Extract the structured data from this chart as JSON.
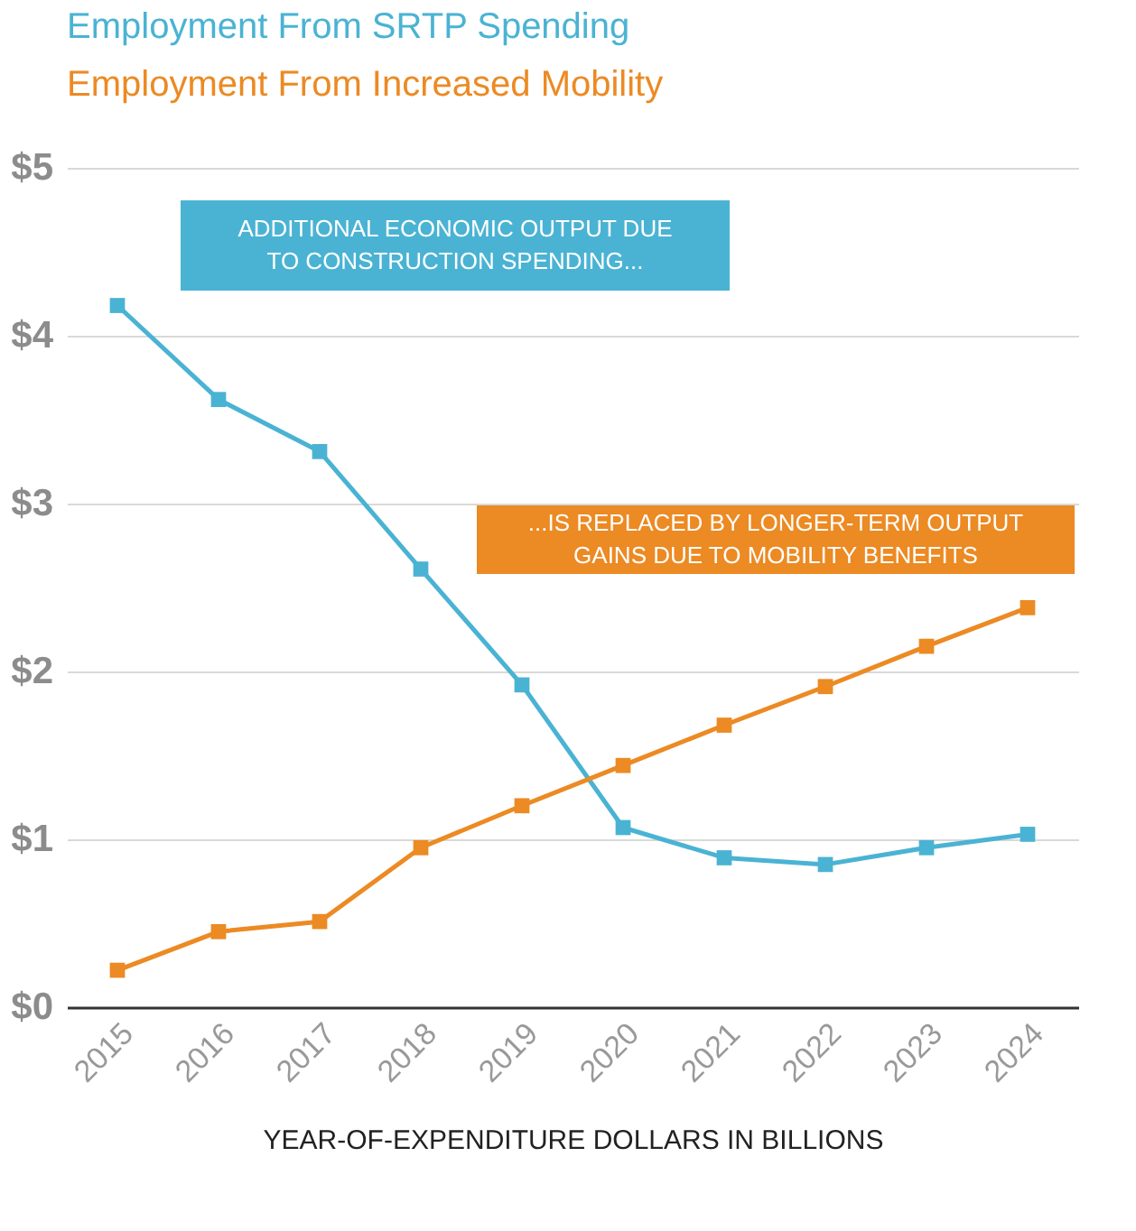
{
  "chart_data": {
    "type": "line",
    "categories": [
      "2015",
      "2016",
      "2017",
      "2018",
      "2019",
      "2020",
      "2021",
      "2022",
      "2023",
      "2024"
    ],
    "series": [
      {
        "name": "Employment From SRTP Spending",
        "color": "#4ab3d3",
        "values": [
          4.18,
          3.62,
          3.31,
          2.61,
          1.92,
          1.07,
          0.89,
          0.85,
          0.95,
          1.03
        ]
      },
      {
        "name": "Employment From Increased Mobility",
        "color": "#ec8a23",
        "values": [
          0.22,
          0.45,
          0.51,
          0.95,
          1.2,
          1.44,
          1.68,
          1.91,
          2.15,
          2.38
        ]
      }
    ],
    "ylim": [
      0,
      5
    ],
    "yticks": [
      {
        "value": 0,
        "label": "$0"
      },
      {
        "value": 1,
        "label": "$1"
      },
      {
        "value": 2,
        "label": "$2"
      },
      {
        "value": 3,
        "label": "$3"
      },
      {
        "value": 4,
        "label": "$4"
      },
      {
        "value": 5,
        "label": "$5"
      }
    ],
    "xlabel": "YEAR-OF-EXPENDITURE DOLLARS IN BILLIONS",
    "annotations": [
      "ADDITIONAL ECONOMIC OUTPUT DUE\nTO CONSTRUCTION SPENDING...",
      "...IS REPLACED BY LONGER-TERM OUTPUT\nGAINS DUE TO MOBILITY BENEFITS"
    ],
    "grid": "y",
    "legend": "top left",
    "marker": "square",
    "line_style": "solid"
  }
}
